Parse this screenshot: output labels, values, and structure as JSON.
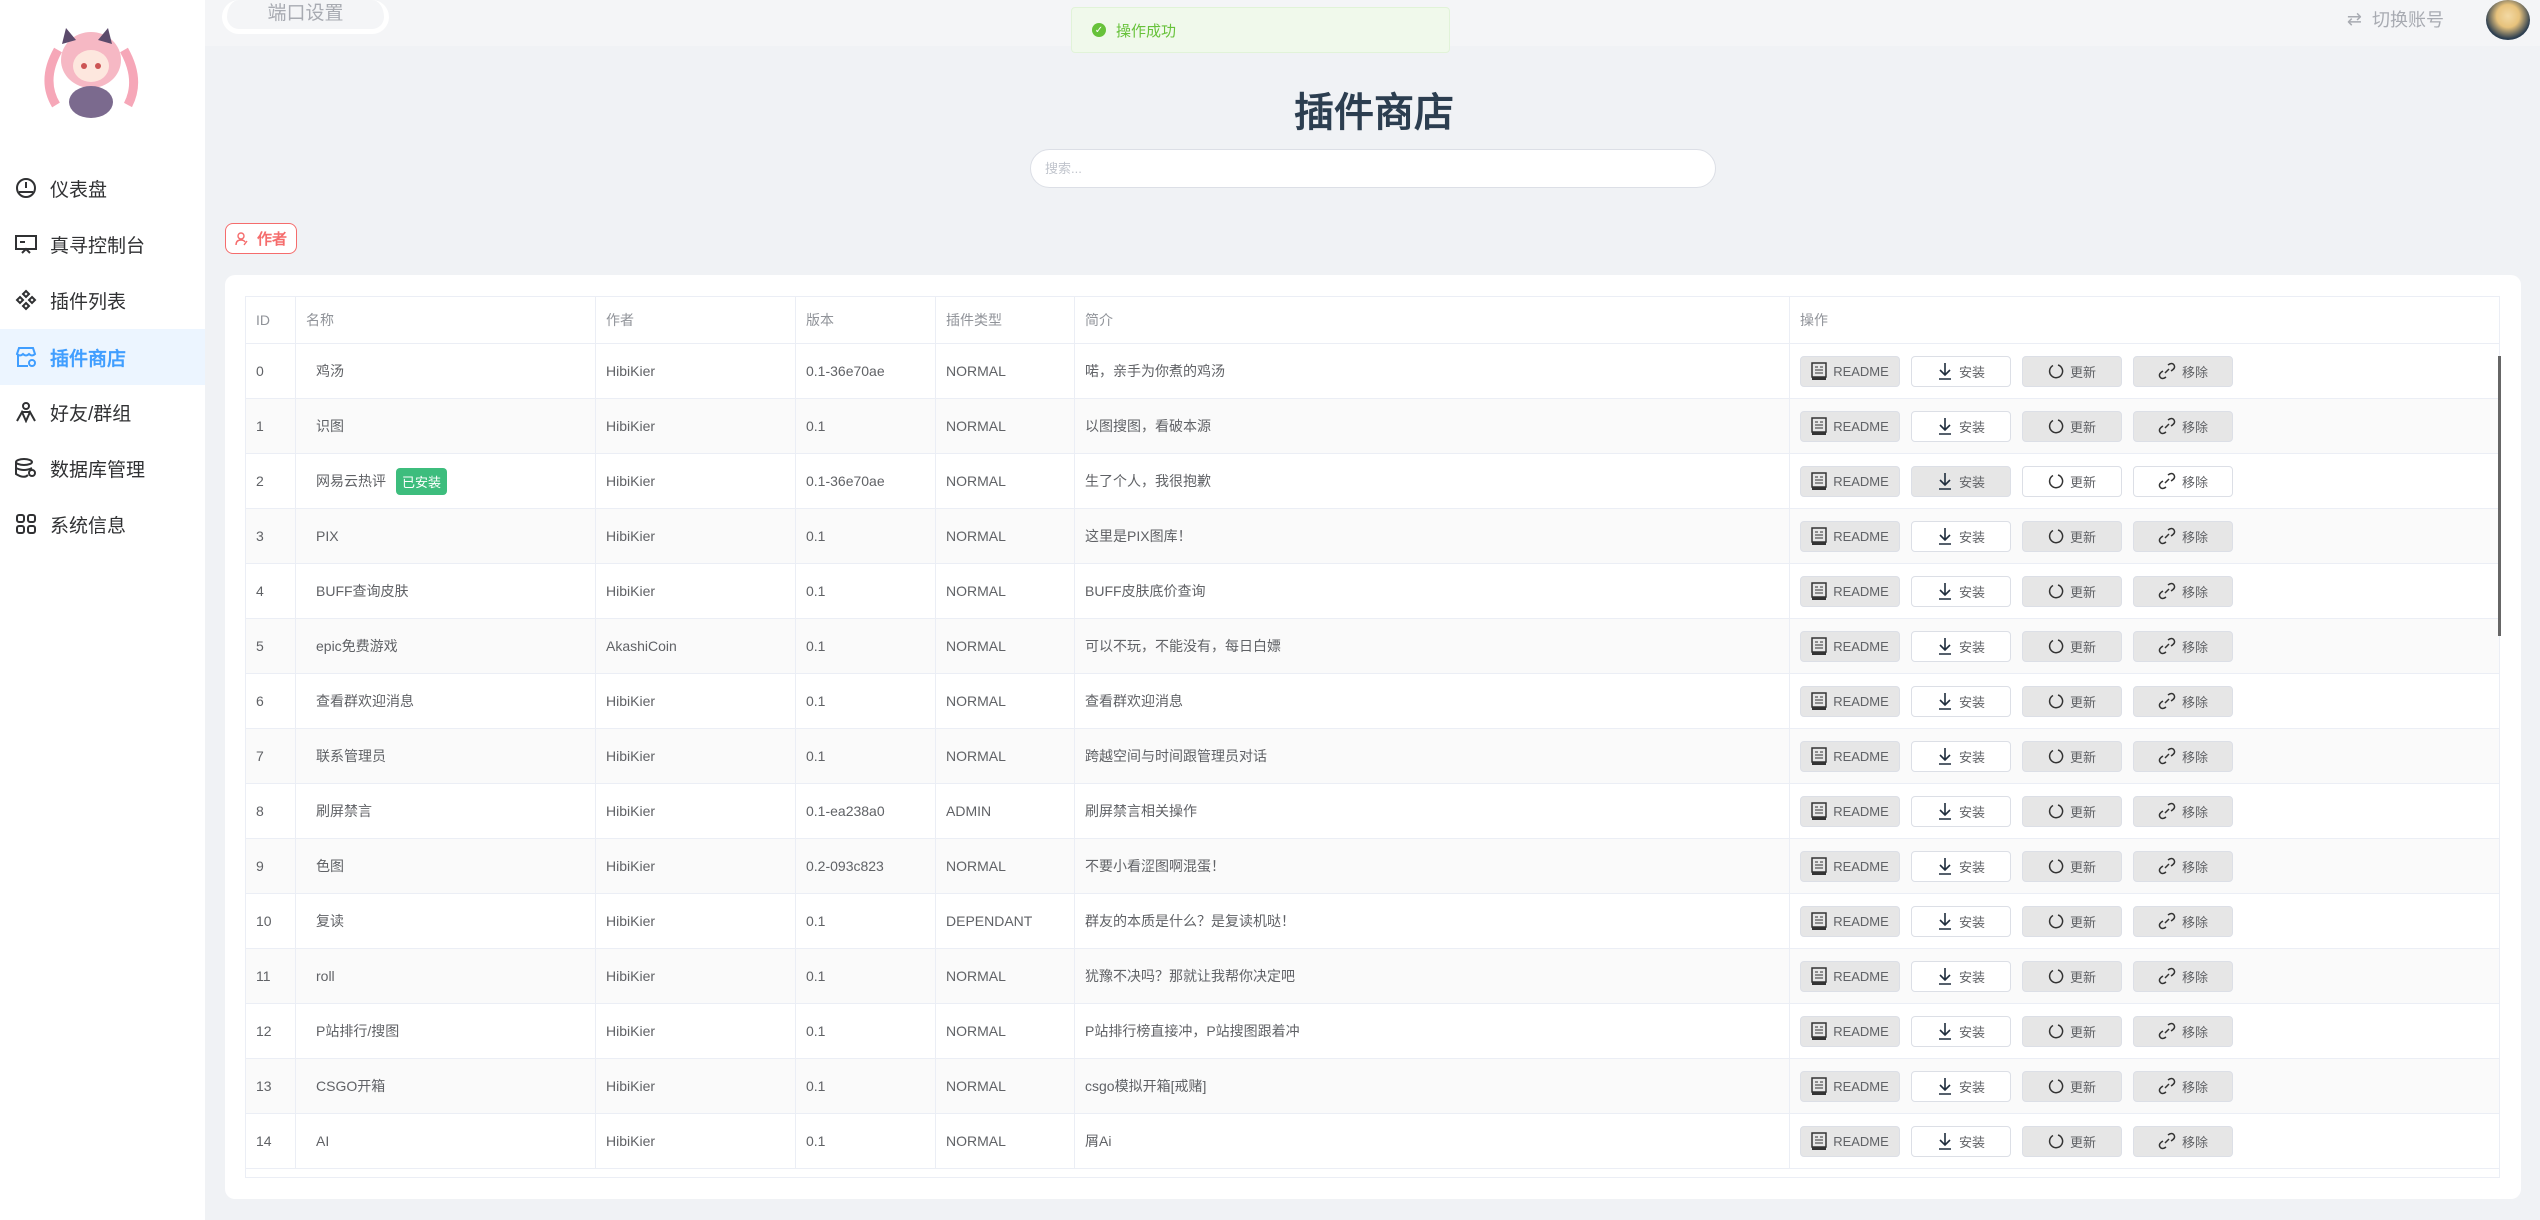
{
  "sidebar": {
    "items": [
      {
        "label": "仪表盘",
        "icon": "dashboard-icon"
      },
      {
        "label": "真寻控制台",
        "icon": "monitor-icon"
      },
      {
        "label": "插件列表",
        "icon": "plugins-icon"
      },
      {
        "label": "插件商店",
        "icon": "shop-icon",
        "active": true
      },
      {
        "label": "好友/群组",
        "icon": "group-icon"
      },
      {
        "label": "数据库管理",
        "icon": "database-icon"
      },
      {
        "label": "系统信息",
        "icon": "grid-icon"
      }
    ]
  },
  "topbar": {
    "port_settings": "端口设置",
    "switch_account": "切换账号"
  },
  "toast": {
    "message": "操作成功"
  },
  "page": {
    "title": "插件商店",
    "search_placeholder": "搜索...",
    "author_tag": "作者"
  },
  "table": {
    "headers": [
      "ID",
      "名称",
      "作者",
      "版本",
      "插件类型",
      "简介",
      "操作"
    ],
    "actions": {
      "readme": "README",
      "install": "安装",
      "update": "更新",
      "remove": "移除"
    },
    "installed_badge": "已安装",
    "rows": [
      {
        "id": "0",
        "name": "鸡汤",
        "author": "HibiKier",
        "version": "0.1-36e70ae",
        "type": "NORMAL",
        "desc": "喏，亲手为你煮的鸡汤",
        "installed": false
      },
      {
        "id": "1",
        "name": "识图",
        "author": "HibiKier",
        "version": "0.1",
        "type": "NORMAL",
        "desc": "以图搜图，看破本源",
        "installed": false
      },
      {
        "id": "2",
        "name": "网易云热评",
        "author": "HibiKier",
        "version": "0.1-36e70ae",
        "type": "NORMAL",
        "desc": "生了个人，我很抱歉",
        "installed": true
      },
      {
        "id": "3",
        "name": "PIX",
        "author": "HibiKier",
        "version": "0.1",
        "type": "NORMAL",
        "desc": "这里是PIX图库！",
        "installed": false
      },
      {
        "id": "4",
        "name": "BUFF查询皮肤",
        "author": "HibiKier",
        "version": "0.1",
        "type": "NORMAL",
        "desc": "BUFF皮肤底价查询",
        "installed": false
      },
      {
        "id": "5",
        "name": "epic免费游戏",
        "author": "AkashiCoin",
        "version": "0.1",
        "type": "NORMAL",
        "desc": "可以不玩，不能没有，每日白嫖",
        "installed": false
      },
      {
        "id": "6",
        "name": "查看群欢迎消息",
        "author": "HibiKier",
        "version": "0.1",
        "type": "NORMAL",
        "desc": "查看群欢迎消息",
        "installed": false
      },
      {
        "id": "7",
        "name": "联系管理员",
        "author": "HibiKier",
        "version": "0.1",
        "type": "NORMAL",
        "desc": "跨越空间与时间跟管理员对话",
        "installed": false
      },
      {
        "id": "8",
        "name": "刷屏禁言",
        "author": "HibiKier",
        "version": "0.1-ea238a0",
        "type": "ADMIN",
        "desc": "刷屏禁言相关操作",
        "installed": false
      },
      {
        "id": "9",
        "name": "色图",
        "author": "HibiKier",
        "version": "0.2-093c823",
        "type": "NORMAL",
        "desc": "不要小看涩图啊混蛋！",
        "installed": false
      },
      {
        "id": "10",
        "name": "复读",
        "author": "HibiKier",
        "version": "0.1",
        "type": "DEPENDANT",
        "desc": "群友的本质是什么？是复读机哒！",
        "installed": false
      },
      {
        "id": "11",
        "name": "roll",
        "author": "HibiKier",
        "version": "0.1",
        "type": "NORMAL",
        "desc": "犹豫不决吗？那就让我帮你决定吧",
        "installed": false
      },
      {
        "id": "12",
        "name": "P站排行/搜图",
        "author": "HibiKier",
        "version": "0.1",
        "type": "NORMAL",
        "desc": "P站排行榜直接冲，P站搜图跟着冲",
        "installed": false
      },
      {
        "id": "13",
        "name": "CSGO开箱",
        "author": "HibiKier",
        "version": "0.1",
        "type": "NORMAL",
        "desc": "csgo模拟开箱[戒赌]",
        "installed": false
      },
      {
        "id": "14",
        "name": "AI",
        "author": "HibiKier",
        "version": "0.1",
        "type": "NORMAL",
        "desc": "屑Ai",
        "installed": false
      }
    ]
  },
  "colors": {
    "accent": "#409eff",
    "success": "#67c23a",
    "danger": "#f56c6c",
    "installed_badge": "#3dbd7d"
  }
}
